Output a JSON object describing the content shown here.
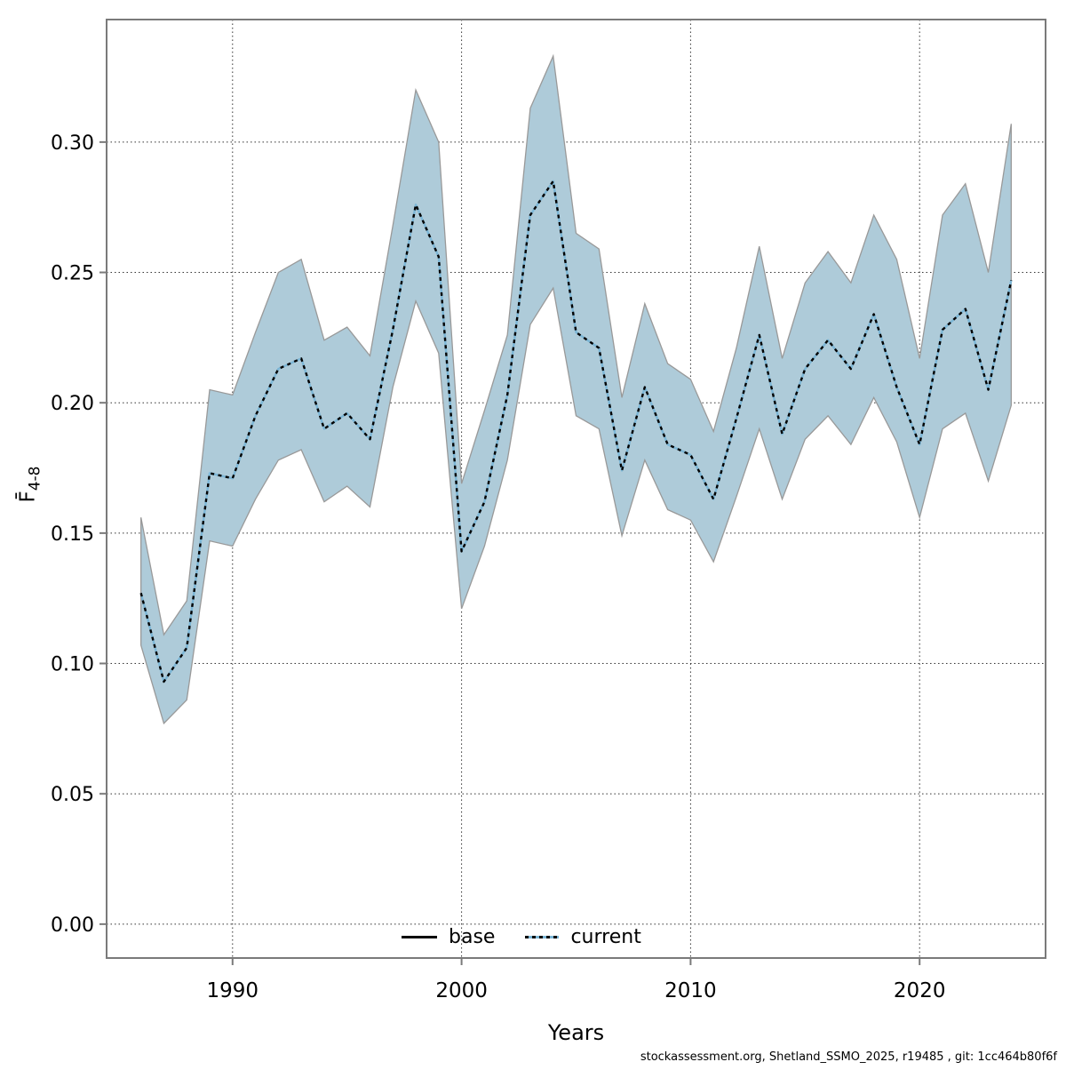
{
  "page": {
    "background": "#ffffff"
  },
  "axes": {
    "x_title": "Years",
    "y_title_main": "F̄",
    "y_title_sub": "4-8"
  },
  "legend": {
    "base_label": "base",
    "current_label": "current"
  },
  "footer": {
    "text": "stockassessment.org, Shetland_SSMO_2025, r19485 , git: 1cc464b80f6f"
  },
  "chart_data": {
    "type": "line",
    "subtype": "line-with-confidence-ribbon",
    "title": "",
    "xlabel": "Years",
    "ylabel": "F̄4-8",
    "xlim": [
      1984.5,
      2025.5
    ],
    "ylim": [
      -0.013,
      0.347
    ],
    "grid": "dotted",
    "legend_position": "bottom-center-inside",
    "xticks": [
      1990,
      2000,
      2010,
      2020
    ],
    "xtick_labels": [
      "1990",
      "2000",
      "2010",
      "2020"
    ],
    "yticks": [
      0.0,
      0.05,
      0.1,
      0.15,
      0.2,
      0.25,
      0.3
    ],
    "ytick_labels": [
      "0.00",
      "0.05",
      "0.10",
      "0.15",
      "0.20",
      "0.25",
      "0.30"
    ],
    "x": [
      1986,
      1987,
      1988,
      1989,
      1990,
      1991,
      1992,
      1993,
      1994,
      1995,
      1996,
      1997,
      1998,
      1999,
      2000,
      2001,
      2002,
      2003,
      2004,
      2005,
      2006,
      2007,
      2008,
      2009,
      2010,
      2011,
      2012,
      2013,
      2014,
      2015,
      2016,
      2017,
      2018,
      2019,
      2020,
      2021,
      2022,
      2023,
      2024
    ],
    "series": [
      {
        "name": "current",
        "style": "black dashes over light-blue solid line",
        "values": [
          0.127,
          0.093,
          0.106,
          0.173,
          0.171,
          0.195,
          0.213,
          0.217,
          0.19,
          0.196,
          0.186,
          0.228,
          0.276,
          0.256,
          0.143,
          0.162,
          0.203,
          0.272,
          0.285,
          0.227,
          0.221,
          0.174,
          0.206,
          0.184,
          0.18,
          0.163,
          0.194,
          0.226,
          0.188,
          0.213,
          0.224,
          0.213,
          0.234,
          0.206,
          0.184,
          0.228,
          0.236,
          0.205,
          0.247
        ]
      },
      {
        "name": "base",
        "style": "solid black (hidden beneath current line)",
        "values": [
          0.127,
          0.093,
          0.106,
          0.173,
          0.171,
          0.195,
          0.213,
          0.217,
          0.19,
          0.196,
          0.186,
          0.228,
          0.276,
          0.256,
          0.143,
          0.162,
          0.203,
          0.272,
          0.285,
          0.227,
          0.221,
          0.174,
          0.206,
          0.184,
          0.18,
          0.163,
          0.194,
          0.226,
          0.188,
          0.213,
          0.224,
          0.213,
          0.234,
          0.206,
          0.184,
          0.228,
          0.236,
          0.205,
          0.247
        ]
      }
    ],
    "ribbon": {
      "name": "confidence-band",
      "lower": [
        0.107,
        0.077,
        0.086,
        0.147,
        0.145,
        0.163,
        0.178,
        0.182,
        0.162,
        0.168,
        0.16,
        0.206,
        0.239,
        0.219,
        0.121,
        0.145,
        0.178,
        0.23,
        0.244,
        0.195,
        0.19,
        0.149,
        0.178,
        0.159,
        0.155,
        0.139,
        0.164,
        0.19,
        0.163,
        0.186,
        0.195,
        0.184,
        0.202,
        0.185,
        0.156,
        0.19,
        0.196,
        0.17,
        0.199
      ],
      "upper": [
        0.156,
        0.111,
        0.124,
        0.205,
        0.203,
        0.227,
        0.25,
        0.255,
        0.224,
        0.229,
        0.218,
        0.268,
        0.32,
        0.3,
        0.169,
        0.197,
        0.226,
        0.313,
        0.333,
        0.265,
        0.259,
        0.202,
        0.238,
        0.215,
        0.209,
        0.189,
        0.221,
        0.26,
        0.217,
        0.246,
        0.258,
        0.246,
        0.272,
        0.255,
        0.217,
        0.272,
        0.284,
        0.25,
        0.307
      ]
    },
    "colors": {
      "ribbon_fill": "#aecbd9",
      "ribbon_edge": "#999999",
      "current_line_blue": "#7cb6d6",
      "current_line_dash": "#000000",
      "base_line": "#000000",
      "frame": "#7a7a7a",
      "grid": "#333333",
      "tick": "#7a7a7a",
      "text": "#000000"
    }
  }
}
